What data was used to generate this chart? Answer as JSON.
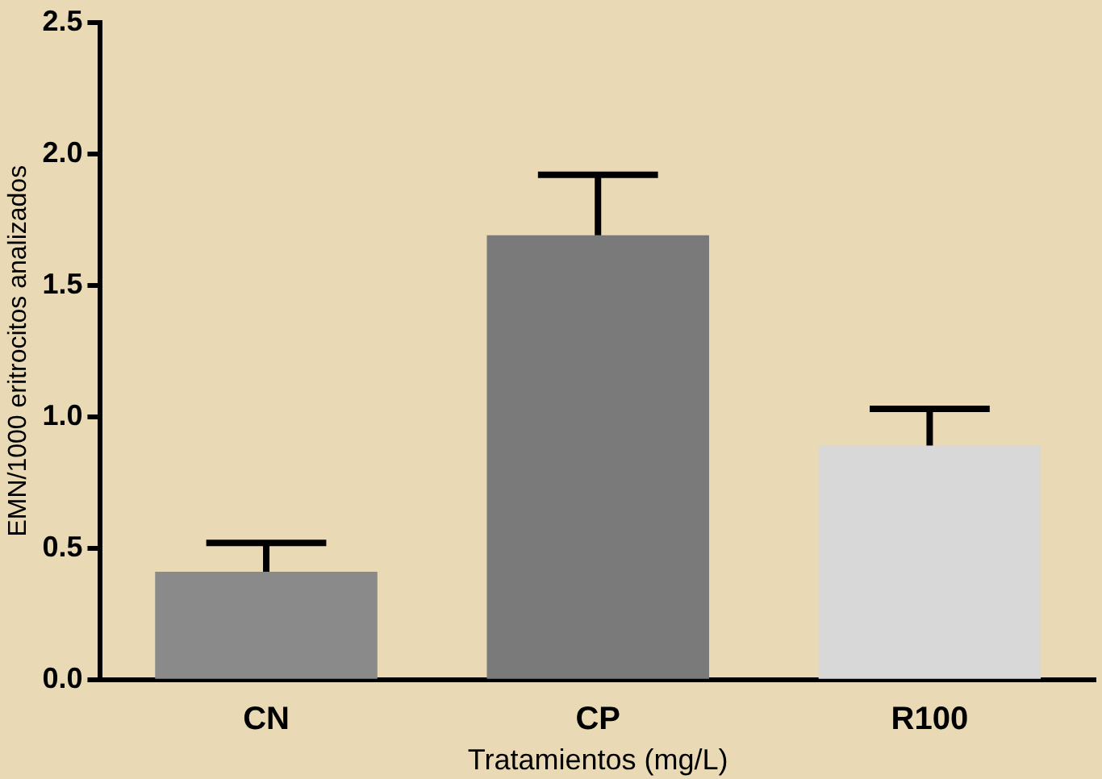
{
  "chart_data": {
    "type": "bar",
    "xlabel": "Tratamientos (mg/L)",
    "ylabel": "EMN/1000 eritrocitos analizados",
    "categories": [
      "CN",
      "CP",
      "R100"
    ],
    "values": [
      0.41,
      1.69,
      0.89
    ],
    "errors": [
      [
        0.41,
        0.52
      ],
      [
        1.69,
        1.92
      ],
      [
        0.89,
        1.03
      ]
    ],
    "colors": [
      "#8a8a8a",
      "#7a7a7a",
      "#d8d8d8"
    ],
    "ylim": [
      0,
      2.5
    ],
    "yticks": [
      {
        "value": 0,
        "label": "0.0"
      },
      {
        "value": 0.5,
        "label": "0.5"
      },
      {
        "value": 1,
        "label": "1.0"
      },
      {
        "value": 1.5,
        "label": "1.5"
      },
      {
        "value": 2,
        "label": "2.0"
      },
      {
        "value": 2.5,
        "label": "2.5"
      }
    ],
    "grid": false,
    "legend": false
  }
}
